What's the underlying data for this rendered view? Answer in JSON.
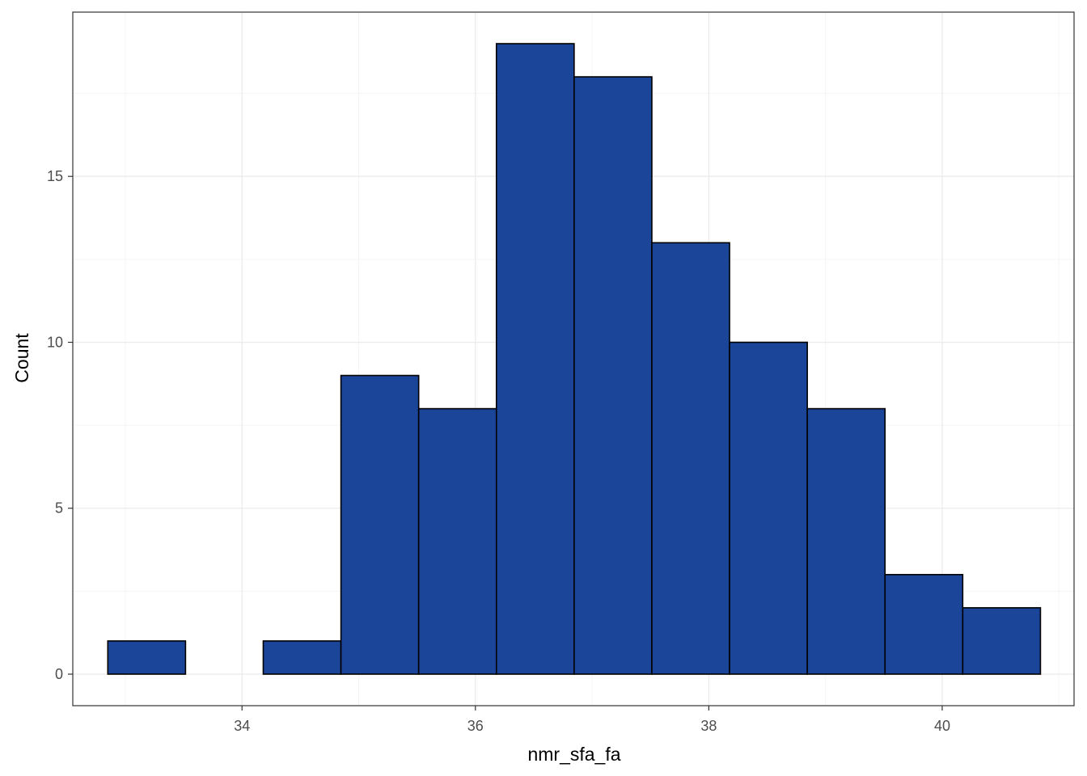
{
  "chart_data": {
    "type": "histogram",
    "xlabel": "nmr_sfa_fa",
    "ylabel": "Count",
    "xlim": [
      32.55,
      41.13
    ],
    "ylim": [
      -0.95,
      19.95
    ],
    "x_ticks": [
      34,
      36,
      38,
      40
    ],
    "y_ticks": [
      0,
      5,
      10,
      15
    ],
    "x_minor": [
      33,
      35,
      37,
      39,
      41
    ],
    "y_minor": [
      2.5,
      7.5,
      12.5,
      17.5
    ],
    "grid": true,
    "bin_width": 0.666,
    "bins": [
      {
        "x0": 32.85,
        "x1": 33.516,
        "count": 1
      },
      {
        "x0": 33.516,
        "x1": 34.182,
        "count": 0
      },
      {
        "x0": 34.182,
        "x1": 34.848,
        "count": 1
      },
      {
        "x0": 34.848,
        "x1": 35.514,
        "count": 9
      },
      {
        "x0": 35.514,
        "x1": 36.18,
        "count": 8
      },
      {
        "x0": 36.18,
        "x1": 36.846,
        "count": 19
      },
      {
        "x0": 36.846,
        "x1": 37.512,
        "count": 18
      },
      {
        "x0": 37.512,
        "x1": 38.178,
        "count": 13
      },
      {
        "x0": 38.178,
        "x1": 38.844,
        "count": 10
      },
      {
        "x0": 38.844,
        "x1": 39.51,
        "count": 8
      },
      {
        "x0": 39.51,
        "x1": 40.176,
        "count": 3
      },
      {
        "x0": 40.176,
        "x1": 40.842,
        "count": 2
      }
    ],
    "colors": {
      "fill": "#1A4599",
      "stroke": "#000000",
      "grid_major": "#EBEBEB",
      "grid_minor": "#F5F5F5",
      "panel_border": "#333333"
    }
  }
}
